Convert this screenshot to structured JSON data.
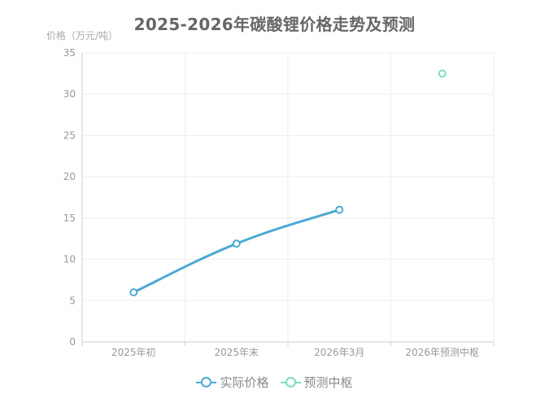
{
  "chart_data": {
    "type": "line",
    "title": "2025-2026年碳酸锂价格走势及预测",
    "ylabel": "价格（万元/吨）",
    "xlabel": "",
    "categories": [
      "2025年初",
      "2025年末",
      "2026年3月",
      "2026年预测中枢"
    ],
    "ylim": [
      0,
      35
    ],
    "yticks": [
      0,
      5,
      10,
      15,
      20,
      25,
      30,
      35
    ],
    "grid": true,
    "legend_position": "bottom",
    "series": [
      {
        "name": "实际价格",
        "color": "#4aaad5",
        "values": [
          6,
          11.9,
          16,
          null
        ]
      },
      {
        "name": "预测中枢",
        "color": "#7fddc2",
        "values": [
          null,
          null,
          null,
          32.5
        ]
      }
    ]
  }
}
